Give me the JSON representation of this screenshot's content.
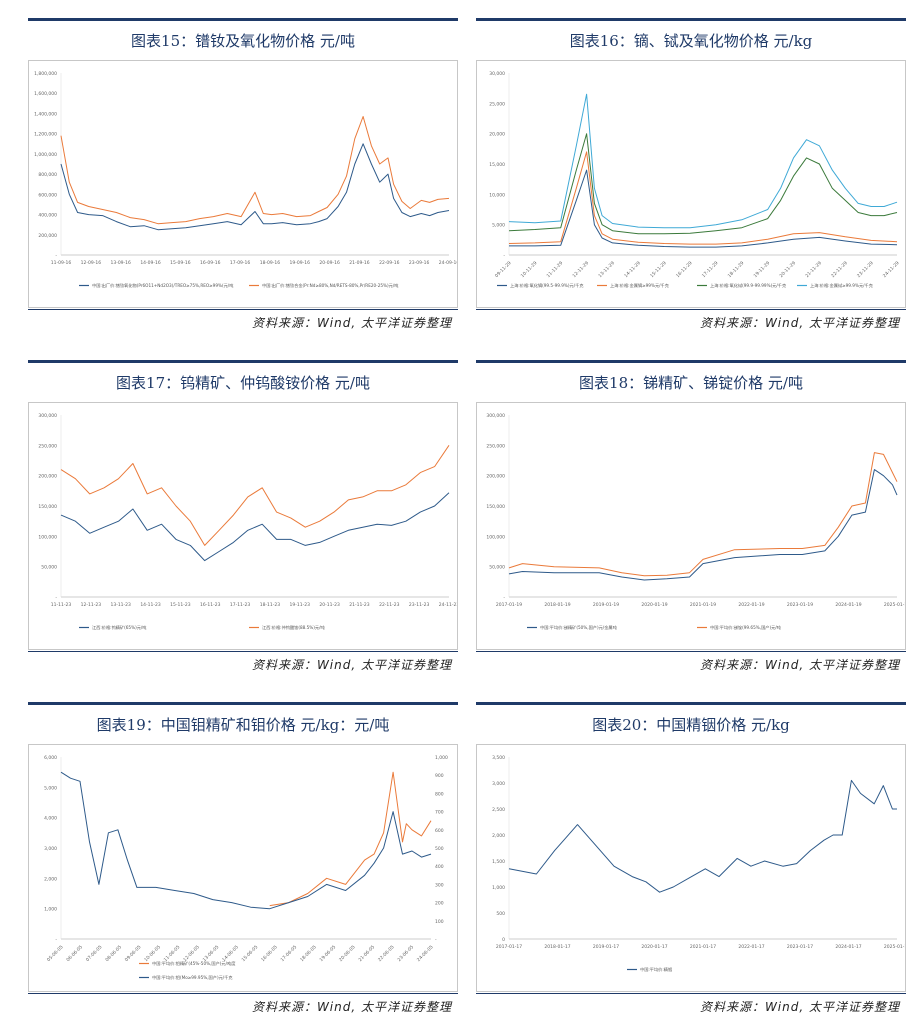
{
  "page": {
    "source": "资料来源：Wind, 太平洋证券整理"
  },
  "charts": [
    {
      "title": "图表15：镨钕及氧化物价格 元/吨",
      "type": "line",
      "xticks": [
        "11-09-16",
        "12-09-16",
        "13-09-16",
        "14-09-16",
        "15-09-16",
        "16-09-16",
        "17-09-16",
        "18-09-16",
        "19-09-16",
        "20-09-16",
        "21-09-16",
        "22-09-16",
        "23-09-16",
        "24-09-16"
      ],
      "yticks": [
        "-",
        "200,000",
        "400,000",
        "600,000",
        "800,000",
        "1,000,000",
        "1,200,000",
        "1,400,000",
        "1,600,000",
        "1,800,000"
      ],
      "ylim": [
        0,
        1800000
      ],
      "xlim": [
        0,
        14
      ],
      "series": [
        {
          "name": "中国:出厂价:镨钕氧化物(Pr6O11+Nd2O3)/TREO≥75%,REO≥99%(元/吨",
          "color": "#2e5a8a",
          "x": [
            0,
            0.3,
            0.6,
            1,
            1.5,
            2,
            2.5,
            3,
            3.5,
            4,
            4.5,
            5,
            5.5,
            6,
            6.5,
            7,
            7.3,
            7.6,
            8,
            8.5,
            9,
            9.3,
            9.6,
            10,
            10.3,
            10.6,
            10.9,
            11.2,
            11.5,
            11.8,
            12,
            12.3,
            12.6,
            13,
            13.3,
            13.6,
            14
          ],
          "y": [
            900000,
            600000,
            420000,
            400000,
            390000,
            330000,
            280000,
            290000,
            250000,
            260000,
            270000,
            290000,
            310000,
            330000,
            300000,
            430000,
            310000,
            310000,
            320000,
            300000,
            310000,
            330000,
            360000,
            480000,
            620000,
            900000,
            1100000,
            900000,
            720000,
            800000,
            560000,
            420000,
            380000,
            410000,
            390000,
            420000,
            440000
          ]
        },
        {
          "name": "中国:出厂价:镨钕合金(Pr:Nd≥80%,Nd/REТS-80%,Pr/RE20-25%)元/吨",
          "color": "#ea7a3a",
          "x": [
            0,
            0.3,
            0.6,
            1,
            1.5,
            2,
            2.5,
            3,
            3.5,
            4,
            4.5,
            5,
            5.5,
            6,
            6.5,
            7,
            7.3,
            7.6,
            8,
            8.5,
            9,
            9.3,
            9.6,
            10,
            10.3,
            10.6,
            10.9,
            11.2,
            11.5,
            11.8,
            12,
            12.3,
            12.6,
            13,
            13.3,
            13.6,
            14
          ],
          "y": [
            1180000,
            720000,
            520000,
            480000,
            450000,
            420000,
            370000,
            350000,
            310000,
            320000,
            330000,
            360000,
            380000,
            410000,
            380000,
            620000,
            410000,
            400000,
            410000,
            380000,
            390000,
            430000,
            470000,
            600000,
            780000,
            1150000,
            1370000,
            1080000,
            900000,
            960000,
            700000,
            530000,
            460000,
            540000,
            520000,
            550000,
            560000
          ]
        }
      ]
    },
    {
      "title": "图表16：镝、铽及氧化物价格 元/kg",
      "type": "line",
      "xticks": [
        "09-11-29",
        "10-11-29",
        "11-11-29",
        "12-11-29",
        "13-11-29",
        "14-11-29",
        "15-11-29",
        "16-11-29",
        "17-11-29",
        "18-11-29",
        "19-11-29",
        "20-11-29",
        "21-11-29",
        "22-11-29",
        "23-11-29",
        "24-11-29"
      ],
      "yticks": [
        "-",
        "5,000",
        "10,000",
        "15,000",
        "20,000",
        "25,000",
        "30,000"
      ],
      "ylim": [
        0,
        30000
      ],
      "xlim": [
        0,
        15
      ],
      "series": [
        {
          "name": "上海:价格:氧化镝(99.5-99.9%)元/千克",
          "color": "#2e5a8a",
          "x": [
            0,
            1,
            2,
            2.6,
            3,
            3.3,
            3.6,
            4,
            5,
            6,
            7,
            8,
            9,
            10,
            11,
            12,
            13,
            14,
            15
          ],
          "y": [
            1500,
            1500,
            1600,
            9000,
            14000,
            5000,
            2800,
            2000,
            1600,
            1400,
            1300,
            1300,
            1500,
            2000,
            2600,
            2900,
            2300,
            1800,
            1700
          ]
        },
        {
          "name": "上海:价格:金属镝≥99%元/千克",
          "color": "#ea7a3a",
          "x": [
            0,
            1,
            2,
            2.6,
            3,
            3.3,
            3.6,
            4,
            5,
            6,
            7,
            8,
            9,
            10,
            11,
            12,
            13,
            14,
            15
          ],
          "y": [
            1900,
            2000,
            2200,
            11000,
            17000,
            6500,
            3500,
            2600,
            2100,
            1900,
            1800,
            1800,
            2000,
            2600,
            3500,
            3700,
            3000,
            2400,
            2200
          ]
        },
        {
          "name": "上海:价格:氧化铽(99.9-99.99%)元/千克",
          "color": "#3b7a3b",
          "x": [
            0,
            1,
            2,
            2.6,
            3,
            3.3,
            3.6,
            4,
            5,
            6,
            7,
            8,
            9,
            10,
            10.5,
            11,
            11.5,
            12,
            12.5,
            13,
            13.5,
            14,
            14.5,
            15
          ],
          "y": [
            4000,
            4200,
            4500,
            14000,
            20000,
            8500,
            5000,
            4000,
            3500,
            3500,
            3600,
            4000,
            4500,
            6000,
            9000,
            13000,
            16000,
            15000,
            11000,
            9000,
            7000,
            6500,
            6500,
            7000
          ]
        },
        {
          "name": "上海:价格:金属铽≥99.9%元/千克",
          "color": "#3fa9d6",
          "x": [
            0,
            1,
            2,
            2.6,
            3,
            3.3,
            3.6,
            4,
            5,
            6,
            7,
            8,
            9,
            10,
            10.5,
            11,
            11.5,
            12,
            12.5,
            13,
            13.5,
            14,
            14.5,
            15
          ],
          "y": [
            5500,
            5300,
            5600,
            18000,
            26500,
            11000,
            6500,
            5200,
            4600,
            4500,
            4500,
            5000,
            5800,
            7500,
            11000,
            16000,
            19000,
            18000,
            14000,
            11000,
            8500,
            8000,
            8000,
            8700
          ]
        }
      ]
    },
    {
      "title": "图表17：钨精矿、仲钨酸铵价格 元/吨",
      "type": "line",
      "xticks": [
        "11-11-23",
        "12-11-23",
        "13-11-23",
        "14-11-23",
        "15-11-23",
        "16-11-23",
        "17-11-23",
        "18-11-23",
        "19-11-23",
        "20-11-23",
        "21-11-23",
        "22-11-23",
        "23-11-23",
        "24-11-23"
      ],
      "yticks": [
        "-",
        "50,000",
        "100,000",
        "150,000",
        "200,000",
        "250,000",
        "300,000"
      ],
      "ylim": [
        0,
        300000
      ],
      "xlim": [
        0,
        13.5
      ],
      "series": [
        {
          "name": "江西:价格:钨精矿(65%)元/吨",
          "color": "#2e5a8a",
          "x": [
            0,
            0.5,
            1,
            1.5,
            2,
            2.5,
            3,
            3.5,
            4,
            4.5,
            5,
            5.5,
            6,
            6.5,
            7,
            7.5,
            8,
            8.5,
            9,
            9.5,
            10,
            10.5,
            11,
            11.5,
            12,
            12.5,
            13,
            13.5
          ],
          "y": [
            135000,
            125000,
            105000,
            115000,
            125000,
            145000,
            110000,
            120000,
            95000,
            85000,
            60000,
            75000,
            90000,
            110000,
            120000,
            95000,
            95000,
            85000,
            90000,
            100000,
            110000,
            115000,
            120000,
            118000,
            125000,
            140000,
            150000,
            172000
          ]
        },
        {
          "name": "江西:价格:仲钨酸铵(88.5%)元/吨",
          "color": "#ea7a3a",
          "x": [
            0,
            0.5,
            1,
            1.5,
            2,
            2.5,
            3,
            3.5,
            4,
            4.5,
            5,
            5.5,
            6,
            6.5,
            7,
            7.5,
            8,
            8.5,
            9,
            9.5,
            10,
            10.5,
            11,
            11.5,
            12,
            12.5,
            13,
            13.5
          ],
          "y": [
            210000,
            195000,
            170000,
            180000,
            195000,
            220000,
            170000,
            180000,
            150000,
            125000,
            85000,
            110000,
            135000,
            165000,
            180000,
            140000,
            130000,
            115000,
            125000,
            140000,
            160000,
            165000,
            175000,
            175000,
            185000,
            205000,
            215000,
            250000
          ]
        }
      ]
    },
    {
      "title": "图表18：锑精矿、锑锭价格 元/吨",
      "type": "line",
      "xticks": [
        "2017-01-19",
        "2018-01-19",
        "2019-01-19",
        "2020-01-19",
        "2021-01-19",
        "2022-01-19",
        "2023-01-19",
        "2024-01-19",
        "2025-01-19"
      ],
      "yticks": [
        "-",
        "50,000",
        "100,000",
        "150,000",
        "200,000",
        "250,000",
        "300,000"
      ],
      "ylim": [
        0,
        300000
      ],
      "xlim": [
        0,
        8.6
      ],
      "series": [
        {
          "name": "中国:平均价:锑精矿(50%,国产)元/金属吨",
          "color": "#2e5a8a",
          "x": [
            0,
            0.3,
            1,
            2,
            2.5,
            3,
            3.5,
            4,
            4.3,
            5,
            6,
            6.5,
            7,
            7.3,
            7.6,
            7.9,
            8.1,
            8.3,
            8.5,
            8.6
          ],
          "y": [
            38000,
            42000,
            40000,
            40000,
            33000,
            28000,
            30000,
            33000,
            55000,
            65000,
            70000,
            70000,
            76000,
            100000,
            135000,
            140000,
            210000,
            200000,
            185000,
            168000
          ]
        },
        {
          "name": "中国:平均价:锑锭(99.65%,国产)元/吨",
          "color": "#ea7a3a",
          "x": [
            0,
            0.3,
            1,
            2,
            2.5,
            3,
            3.5,
            4,
            4.3,
            5,
            6,
            6.5,
            7,
            7.3,
            7.6,
            7.9,
            8.1,
            8.3,
            8.5,
            8.6
          ],
          "y": [
            48000,
            55000,
            50000,
            48000,
            40000,
            35000,
            36000,
            40000,
            62000,
            78000,
            80000,
            80000,
            85000,
            115000,
            150000,
            155000,
            238000,
            235000,
            205000,
            190000
          ]
        }
      ]
    },
    {
      "title": "图表19：中国钼精矿和钼价格 元/kg：元/吨",
      "type": "line",
      "xticks": [
        "05-06-05",
        "06-06-05",
        "07-06-05",
        "08-06-05",
        "09-06-05",
        "10-06-05",
        "11-06-05",
        "12-06-05",
        "13-06-05",
        "14-06-05",
        "15-06-05",
        "16-06-05",
        "17-06-05",
        "18-06-05",
        "19-06-05",
        "20-06-05",
        "21-06-05",
        "22-06-05",
        "23-06-05",
        "24-06-05"
      ],
      "yticks": [
        "-",
        "1,000",
        "2,000",
        "3,000",
        "4,000",
        "5,000",
        "6,000"
      ],
      "y2ticks": [
        "-",
        "100",
        "200",
        "300",
        "400",
        "500",
        "600",
        "700",
        "800",
        "900",
        "1,000"
      ],
      "ylim": [
        0,
        6000
      ],
      "xlim": [
        0,
        19.5
      ],
      "series": [
        {
          "name": "中国:平均价:钼精矿(45%-50%,国产)元/吨度",
          "color": "#ea7a3a",
          "x": [
            11,
            12,
            13,
            14,
            15,
            16,
            16.5,
            17,
            17.5,
            18,
            18.2,
            18.5,
            19,
            19.5
          ],
          "y": [
            1100,
            1200,
            1500,
            2000,
            1800,
            2600,
            2800,
            3500,
            5500,
            3200,
            3800,
            3600,
            3400,
            3900
          ]
        },
        {
          "name": "中国:平均价:钼(Mo≥99.95%,国产)元/千克",
          "color": "#2e5a8a",
          "x": [
            0,
            0.5,
            1,
            1.5,
            2,
            2.5,
            3,
            3.5,
            4,
            5,
            6,
            7,
            8,
            9,
            10,
            11,
            12,
            13,
            14,
            15,
            16,
            16.5,
            17,
            17.5,
            18,
            18.5,
            19,
            19.5
          ],
          "y": [
            5500,
            5300,
            5200,
            3200,
            1800,
            3500,
            3600,
            2600,
            1700,
            1700,
            1600,
            1500,
            1300,
            1200,
            1050,
            1000,
            1200,
            1400,
            1800,
            1600,
            2100,
            2500,
            3000,
            4200,
            2800,
            2900,
            2700,
            2800
          ]
        }
      ]
    },
    {
      "title": "图表20：中国精铟价格 元/kg",
      "type": "line",
      "xticks": [
        "2017-01-17",
        "2018-01-17",
        "2019-01-17",
        "2020-01-17",
        "2021-01-17",
        "2022-01-17",
        "2023-01-17",
        "2024-01-17",
        "2025-01-17"
      ],
      "yticks": [
        "0",
        "500",
        "1,000",
        "1,500",
        "2,000",
        "2,500",
        "3,000",
        "3,500"
      ],
      "ylim": [
        0,
        3500
      ],
      "xlim": [
        0,
        8.5
      ],
      "series": [
        {
          "name": "中国:平均价:精铟",
          "color": "#2e5a8a",
          "x": [
            0,
            0.3,
            0.6,
            1,
            1.2,
            1.5,
            1.8,
            2,
            2.3,
            2.7,
            3,
            3.3,
            3.6,
            4,
            4.3,
            4.6,
            5,
            5.3,
            5.6,
            6,
            6.3,
            6.6,
            6.9,
            7.1,
            7.3,
            7.5,
            7.7,
            8,
            8.2,
            8.4,
            8.5
          ],
          "y": [
            1350,
            1300,
            1250,
            1700,
            1900,
            2200,
            1900,
            1700,
            1400,
            1200,
            1100,
            900,
            1000,
            1200,
            1350,
            1200,
            1550,
            1400,
            1500,
            1400,
            1450,
            1700,
            1900,
            2000,
            2000,
            3050,
            2800,
            2600,
            2950,
            2500,
            2500
          ]
        }
      ]
    }
  ]
}
